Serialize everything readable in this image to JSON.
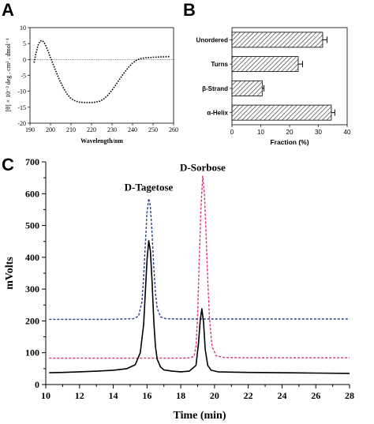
{
  "panels": {
    "a": "A",
    "b": "B",
    "c": "C"
  },
  "chart_data": [
    {
      "panel": "A",
      "type": "line",
      "xlabel": "Wavelength/nm",
      "ylabel": "[θ] × 10⁻³ deg . cm² . dmol⁻¹",
      "xlim": [
        190,
        260
      ],
      "ylim": [
        -20,
        10
      ],
      "xticks": [
        190,
        200,
        210,
        220,
        230,
        240,
        250,
        260
      ],
      "yticks": [
        -20,
        -15,
        -10,
        -5,
        0,
        5,
        10
      ],
      "reference_line": 0,
      "series": [
        {
          "style": "dotted",
          "x": [
            192,
            193,
            194,
            195,
            196,
            197,
            198,
            199,
            200,
            202,
            204,
            206,
            208,
            210,
            212,
            214,
            216,
            218,
            220,
            222,
            224,
            226,
            228,
            230,
            232,
            234,
            236,
            238,
            240,
            242,
            244,
            246,
            248,
            250,
            254,
            258
          ],
          "y": [
            -1.0,
            2.2,
            4.6,
            5.8,
            5.9,
            5.2,
            3.9,
            2.3,
            0.6,
            -2.7,
            -5.9,
            -8.6,
            -10.8,
            -12.3,
            -13.0,
            -13.4,
            -13.5,
            -13.5,
            -13.5,
            -13.4,
            -13.1,
            -12.4,
            -11.2,
            -9.6,
            -7.8,
            -5.9,
            -4.1,
            -2.5,
            -1.1,
            -0.2,
            0.3,
            0.5,
            0.6,
            0.7,
            0.8,
            0.9
          ]
        }
      ]
    },
    {
      "panel": "B",
      "type": "bar",
      "orientation": "horizontal",
      "xlabel": "Fraction (%)",
      "xlim": [
        0,
        40
      ],
      "xticks": [
        0,
        10,
        20,
        30,
        40
      ],
      "categories": [
        "Unordered",
        "Turns",
        "β-Strand",
        "α-Helix"
      ],
      "values": [
        31.5,
        23.0,
        10.5,
        34.5
      ],
      "errors": [
        1.5,
        1.5,
        0.6,
        1.2
      ],
      "hatch": "diagonal"
    },
    {
      "panel": "C",
      "type": "line",
      "xlabel": "Time (min)",
      "ylabel": "mVolts",
      "xlim": [
        10,
        28
      ],
      "ylim": [
        0,
        700
      ],
      "xticks": [
        10,
        12,
        14,
        16,
        18,
        20,
        22,
        24,
        26,
        28
      ],
      "yticks": [
        0,
        100,
        200,
        300,
        400,
        500,
        600,
        700
      ],
      "annotations": [
        {
          "text": "D-Tagetose",
          "x": 16.1,
          "y": 610
        },
        {
          "text": "D-Sorbose",
          "x": 19.3,
          "y": 672
        }
      ],
      "series": [
        {
          "style": "solid",
          "color": "#000000",
          "x": [
            10.2,
            11,
            12,
            13,
            14,
            14.8,
            15.3,
            15.6,
            15.8,
            15.9,
            16.0,
            16.1,
            16.2,
            16.3,
            16.4,
            16.5,
            16.6,
            16.8,
            17.0,
            17.5,
            18.0,
            18.5,
            18.9,
            19.05,
            19.15,
            19.25,
            19.35,
            19.45,
            19.6,
            19.8,
            20.2,
            21,
            22,
            24,
            26,
            28
          ],
          "y": [
            37,
            38,
            40,
            42,
            45,
            50,
            62,
            100,
            190,
            290,
            390,
            452,
            420,
            320,
            200,
            120,
            80,
            55,
            46,
            42,
            40,
            42,
            60,
            130,
            200,
            238,
            195,
            110,
            60,
            45,
            40,
            39,
            38,
            37,
            36,
            35
          ]
        },
        {
          "style": "dashed",
          "color": "#2b3f8c",
          "x": [
            10.2,
            12,
            14,
            15.2,
            15.5,
            15.7,
            15.8,
            15.9,
            16.0,
            16.1,
            16.2,
            16.3,
            16.4,
            16.5,
            16.6,
            16.8,
            17.1,
            18,
            20,
            22,
            24,
            26,
            28
          ],
          "y": [
            205,
            205,
            205,
            207,
            215,
            260,
            340,
            440,
            540,
            585,
            560,
            470,
            370,
            290,
            240,
            213,
            207,
            206,
            206,
            206,
            206,
            206,
            206
          ]
        },
        {
          "style": "dashed",
          "color": "#d6337a",
          "x": [
            10.2,
            12,
            14,
            16,
            18,
            18.6,
            18.8,
            18.9,
            19.0,
            19.1,
            19.2,
            19.3,
            19.4,
            19.5,
            19.6,
            19.7,
            19.85,
            20.1,
            20.6,
            22,
            24,
            26,
            28
          ],
          "y": [
            83,
            83,
            83,
            83,
            83,
            84,
            90,
            120,
            220,
            400,
            560,
            655,
            600,
            470,
            330,
            210,
            120,
            90,
            85,
            84,
            84,
            84,
            84
          ]
        }
      ]
    }
  ]
}
